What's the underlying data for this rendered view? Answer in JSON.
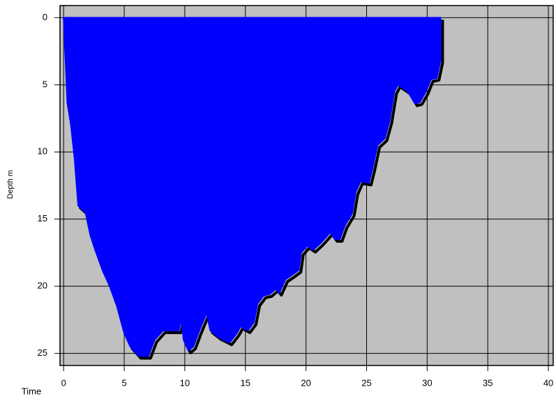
{
  "chart_data": {
    "type": "area",
    "xlabel": "Time",
    "ylabel": "Depth m",
    "x": [
      0,
      0.3,
      0.6,
      0.9,
      1.2,
      1.8,
      2.2,
      2.6,
      3.2,
      3.8,
      4.4,
      5,
      5.5,
      6.2,
      7,
      7.5,
      8.2,
      9.5,
      9.7,
      9.9,
      10.3,
      10.7,
      11.2,
      11.8,
      12.1,
      12.8,
      13.7,
      14.3,
      14.6,
      15.2,
      15.7,
      16,
      16.5,
      17,
      17.5,
      17.8,
      18.3,
      18.8,
      19.4,
      19.6,
      20.1,
      20.6,
      21.2,
      21.7,
      22,
      22.4,
      22.8,
      23.2,
      23.8,
      24.1,
      24.5,
      25.2,
      25.5,
      25.9,
      26.5,
      26.9,
      27.3,
      27.6,
      28.4,
      29,
      29.4,
      29.9,
      30.3,
      30.8,
      31.1,
      31.1
    ],
    "values": [
      0,
      6.3,
      8,
      10.5,
      14,
      14.5,
      16.2,
      17.3,
      18.8,
      20,
      21.5,
      23.5,
      24.5,
      25.2,
      25.2,
      24,
      23.3,
      23.3,
      22.5,
      24,
      24.8,
      24.5,
      23.3,
      22,
      23.3,
      23.8,
      24.2,
      23.5,
      23,
      23.3,
      22.7,
      21.3,
      20.7,
      20.6,
      20.2,
      20.5,
      19.5,
      19.2,
      18.8,
      17.5,
      17,
      17.3,
      16.8,
      16.3,
      16,
      16.5,
      16.5,
      15.5,
      14.6,
      13,
      12.2,
      12.3,
      11.2,
      9.5,
      9,
      7.7,
      5.5,
      5,
      5.5,
      6.4,
      6.3,
      5.5,
      4.6,
      4.5,
      3.2,
      0
    ],
    "color": "#0000ff",
    "shadow_color": "#000000",
    "background": "#c0c0c0",
    "xlim": [
      -0.3,
      40.4
    ],
    "xticks": [
      0,
      5,
      10,
      15,
      20,
      25,
      30,
      35,
      40
    ],
    "ylim": [
      -0.9,
      25.9
    ],
    "yticks": [
      0,
      5,
      10,
      15,
      20,
      25
    ],
    "y_inverted": true,
    "grid": true
  }
}
